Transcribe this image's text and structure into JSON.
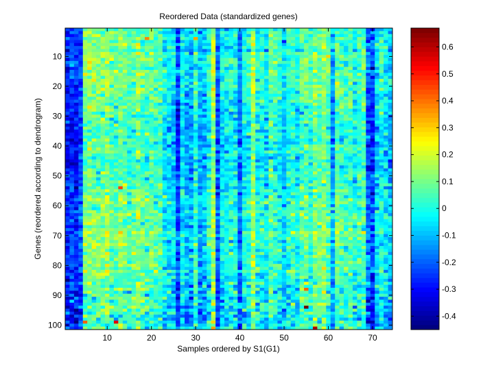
{
  "chart_data": {
    "type": "heatmap",
    "title": "Reordered Data (standardized genes)",
    "xlabel": "Samples ordered by S1(G1)",
    "ylabel": "Genes (reordered according to dendrogram)",
    "n_columns": 74,
    "n_rows": 101,
    "xlim": [
      0.5,
      74.5
    ],
    "ylim": [
      0.5,
      101.5
    ],
    "x_ticks": [
      10,
      20,
      30,
      40,
      50,
      60,
      70
    ],
    "y_ticks": [
      10,
      20,
      30,
      40,
      50,
      60,
      70,
      80,
      90,
      100
    ],
    "colormap": "jet",
    "color_range": [
      -0.45,
      0.67
    ],
    "colorbar_ticks": [
      0.6,
      0.5,
      0.4,
      0.3,
      0.2,
      0.1,
      0,
      -0.1,
      -0.2,
      -0.3,
      -0.4
    ],
    "column_mean_profile_estimate": [
      -0.28,
      -0.25,
      -0.27,
      -0.22,
      0.1,
      0.12,
      0.1,
      0.08,
      0.1,
      0.12,
      0.08,
      0.06,
      0.1,
      0.08,
      0.04,
      0.08,
      0.1,
      0.06,
      0.05,
      0.08,
      0.04,
      0.06,
      -0.05,
      -0.06,
      -0.08,
      -0.25,
      -0.05,
      -0.1,
      -0.12,
      0.02,
      -0.12,
      -0.1,
      0.0,
      0.15,
      -0.22,
      -0.05,
      -0.04,
      0.0,
      -0.02,
      -0.18,
      -0.02,
      0.0,
      0.15,
      -0.02,
      0.0,
      -0.05,
      0.05,
      0.02,
      -0.02,
      -0.08,
      0.0,
      0.02,
      -0.04,
      0.05,
      0.08,
      0.02,
      0.1,
      0.08,
      0.12,
      0.05,
      -0.12,
      0.08,
      0.05,
      0.02,
      0.05,
      -0.02,
      0.02,
      0.06,
      -0.2,
      -0.25,
      -0.08,
      0.0,
      -0.05,
      -0.1
    ],
    "cell_noise_sd_estimate": 0.06,
    "notable_cells": [
      {
        "col": 19,
        "row": 4,
        "value": 0.38
      },
      {
        "col": 30,
        "row": 4,
        "value": 0.35
      },
      {
        "col": 55,
        "row": 94,
        "value": 0.67
      },
      {
        "col": 57,
        "row": 101,
        "value": 0.6
      },
      {
        "col": 12,
        "row": 99,
        "value": 0.55
      },
      {
        "col": 13,
        "row": 54,
        "value": 0.45
      },
      {
        "col": 5,
        "row": 99,
        "value": 0.42
      }
    ]
  }
}
